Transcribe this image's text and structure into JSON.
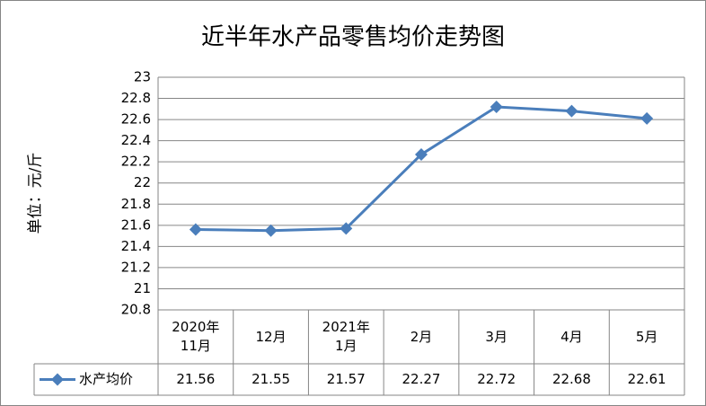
{
  "chart_data": {
    "type": "line",
    "title": "近半年水产品零售均价走势图",
    "y_label": "单位：元/斤",
    "categories": [
      "2020年\n11月",
      "12月",
      "2021年\n1月",
      "2月",
      "3月",
      "4月",
      "5月"
    ],
    "series": [
      {
        "name": "水产均价",
        "color": "#4a7ebb",
        "values": [
          21.56,
          21.55,
          21.57,
          22.27,
          22.72,
          22.68,
          22.61
        ]
      }
    ],
    "ylim": [
      20.8,
      23
    ],
    "yticks": [
      20.8,
      21,
      21.2,
      21.4,
      21.6,
      21.8,
      22,
      22.2,
      22.4,
      22.6,
      22.8,
      23
    ],
    "grid": true,
    "data_table": true
  }
}
